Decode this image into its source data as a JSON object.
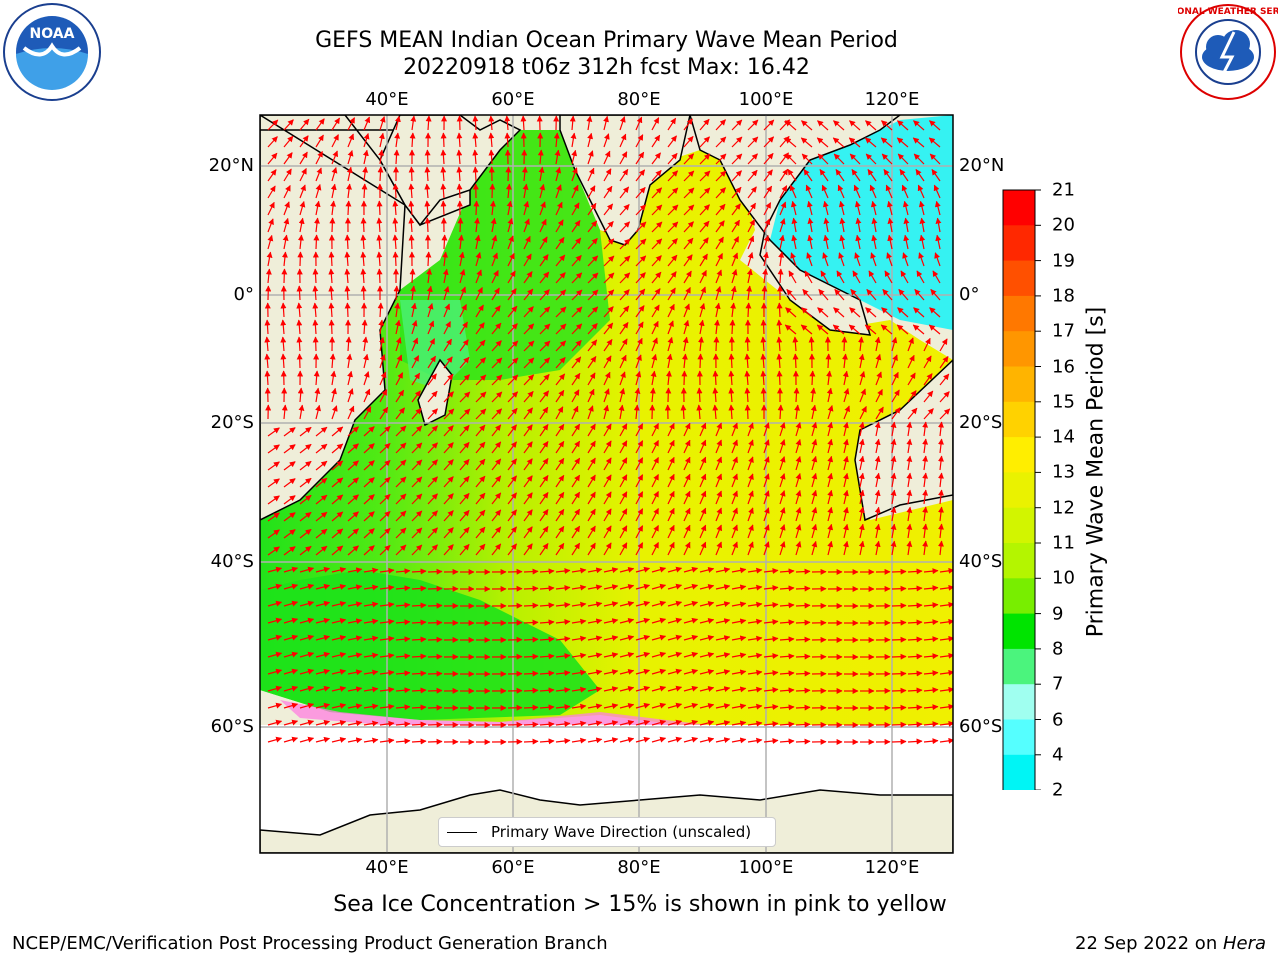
{
  "title": {
    "line1": "GEFS MEAN Indian Ocean Primary Wave Mean Period",
    "line2": "20220918 t06z 312h fcst   Max: 16.42"
  },
  "axes": {
    "lon_ticks": [
      "40°E",
      "60°E",
      "80°E",
      "100°E",
      "120°E"
    ],
    "lat_ticks": [
      "20°N",
      "0°",
      "20°S",
      "40°S",
      "60°S"
    ]
  },
  "colorbar": {
    "label": "Primary Wave Mean Period [s]",
    "ticks": [
      "21",
      "20",
      "19",
      "18",
      "17",
      "16",
      "15",
      "14",
      "13",
      "12",
      "11",
      "10",
      "9",
      "8",
      "7",
      "6",
      "4",
      "2"
    ],
    "colors": [
      "#ff0000",
      "#ff2800",
      "#ff5000",
      "#ff7800",
      "#ff9600",
      "#ffb400",
      "#ffd200",
      "#ffee00",
      "#eaf200",
      "#d2f500",
      "#b4f500",
      "#78ee00",
      "#00e400",
      "#4bf47d",
      "#a0fff0",
      "#55ffff",
      "#00f5f5",
      "#00c8ff"
    ],
    "under_color": "#0000ff"
  },
  "legend": {
    "label": "Primary Wave Direction (unscaled)"
  },
  "subtitle": "Sea Ice Concentration > 15% is shown in pink to yellow",
  "footer": {
    "left": "NCEP/EMC/Verification Post Processing Product Generation Branch",
    "right_date": "22 Sep 2022 on ",
    "right_machine": "Hera"
  },
  "logos": {
    "left": "NOAA",
    "right_text": "NATIONAL WEATHER SERVICE"
  }
}
